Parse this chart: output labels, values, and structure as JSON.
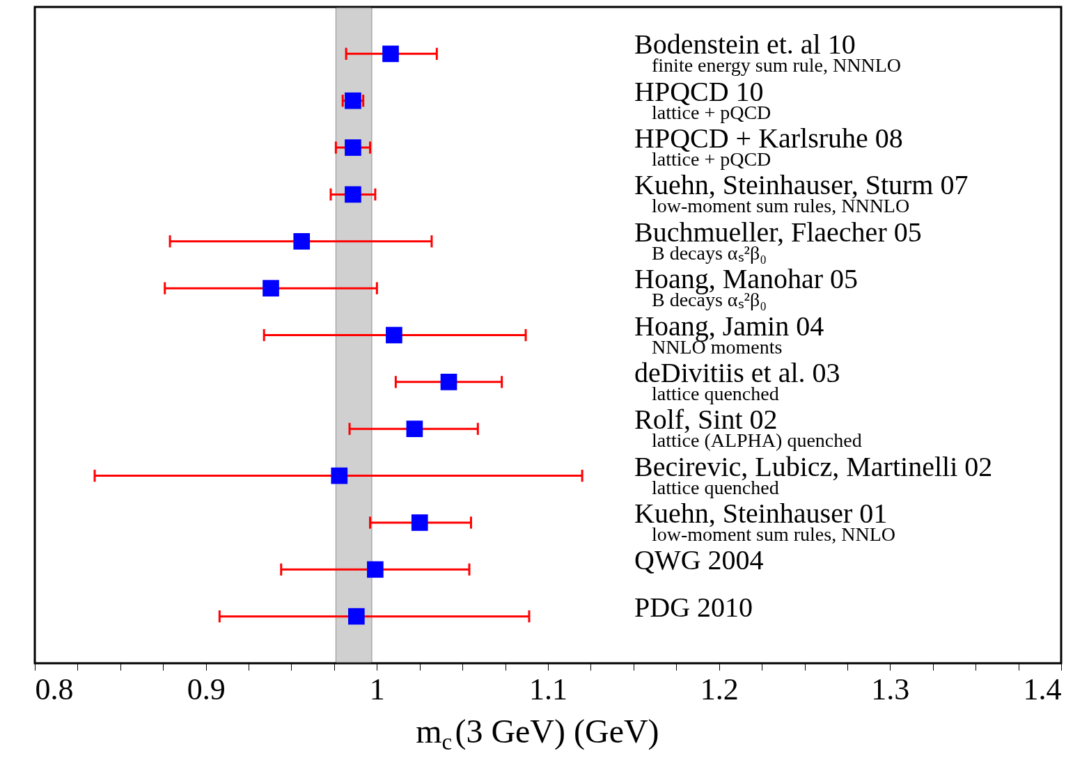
{
  "chart_data": {
    "type": "scatter",
    "orientation": "horizontal",
    "xlabel": "m$_{c}$(3 GeV) (GeV)",
    "categories": [
      "Bodenstein et. al 10\nfinite energy sum rule, NNNLO",
      "HPQCD 10\nlattice + pQCD",
      "HPQCD + Karlsruhe 08\nlattice + pQCD",
      "Kuehn, Steinhauser, Sturm 07\nlow-moment sum rules, NNNLO",
      "Buchmueller, Flaecher 05\nB decays αₛ²β₀",
      "Hoang, Manohar 05\nB decays αₛ²β₀",
      "Hoang, Jamin 04\nNNLO moments",
      "deDivitiis et al. 03\nlattice quenched",
      "Rolf, Sint 02\nlattice (ALPHA) quenched",
      "Becirevic, Lubicz, Martinelli 02\nlattice quenched",
      "Kuehn, Steinhauser 01\nlow-moment sum rules, NNLO",
      "QWG 2004",
      "PDG 2010"
    ],
    "series": [
      {
        "color": "#0000ff",
        "values": [
          1.008,
          0.986,
          0.986,
          0.986,
          0.956,
          0.938,
          1.01,
          1.042,
          1.022,
          0.978,
          1.025,
          0.999,
          0.988
        ],
        "errors": [
          [
            0.982,
            1.035
          ],
          [
            0.98,
            0.992
          ],
          [
            0.976,
            0.996
          ],
          [
            0.973,
            0.999
          ],
          [
            0.879,
            1.032
          ],
          [
            0.876,
            1.0
          ],
          [
            0.934,
            1.087
          ],
          [
            1.011,
            1.073
          ],
          [
            0.984,
            1.059
          ],
          [
            0.835,
            1.12
          ],
          [
            0.996,
            1.055
          ],
          [
            0.944,
            1.054
          ],
          [
            0.908,
            1.089
          ]
        ]
      }
    ],
    "xlim": [
      0.8,
      1.4
    ],
    "xticks": [
      0.8,
      {
        "value": 0.825,
        "label": null
      },
      {
        "value": 0.85,
        "label": null
      },
      {
        "value": 0.875,
        "label": null
      },
      0.9,
      {
        "value": 0.925,
        "label": null
      },
      {
        "value": 0.95,
        "label": null
      },
      {
        "value": 0.975,
        "label": null
      },
      1,
      {
        "value": 1.025,
        "label": null
      },
      {
        "value": 1.05,
        "label": null
      },
      {
        "value": 1.075,
        "label": null
      },
      1.1,
      {
        "value": 1.125,
        "label": null
      },
      {
        "value": 1.15,
        "label": null
      },
      {
        "value": 1.175,
        "label": null
      },
      1.2,
      {
        "value": 1.225,
        "label": null
      },
      {
        "value": 1.25,
        "label": null
      },
      {
        "value": 1.275,
        "label": null
      },
      1.3,
      {
        "value": 1.325,
        "label": null
      },
      {
        "value": 1.35,
        "label": null
      },
      {
        "value": 1.375,
        "label": null
      },
      1.4
    ],
    "bands": [
      {
        "axis": "x",
        "from": 0.976,
        "to": 0.997,
        "color": "#999999"
      }
    ],
    "marker": "square",
    "grid": false
  }
}
